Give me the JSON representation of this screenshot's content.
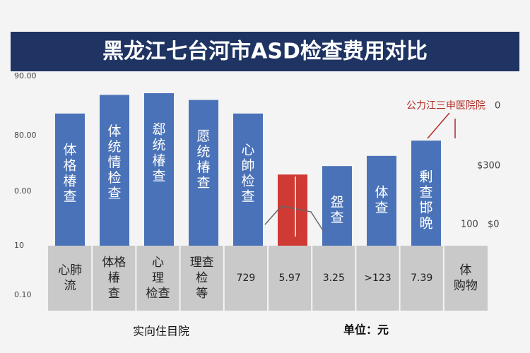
{
  "chart_data": {
    "type": "bar",
    "title": "黑龙江七台河市ASD检查费用对比",
    "bar_labels": [
      [
        "体",
        "格",
        "椿",
        "查"
      ],
      [
        "体",
        "统",
        "情",
        "检",
        "查"
      ],
      [
        "郄",
        "统",
        "椿",
        "查"
      ],
      [
        "愿",
        "统",
        "椿",
        "查"
      ],
      [
        "心",
        "帥",
        "检",
        "查"
      ],
      null,
      [
        "盌",
        "查"
      ],
      [
        "体",
        "查"
      ],
      [
        "剰",
        "查",
        "邯",
        "晩"
      ]
    ],
    "values": [
      78,
      89,
      90,
      86,
      78,
      42,
      47,
      53,
      62
    ],
    "colors": [
      "#4a72b8",
      "#4a72b8",
      "#4a72b8",
      "#4a72b8",
      "#4a72b8",
      "#cf3a34",
      "#4a72b8",
      "#4a72b8",
      "#4a72b8"
    ],
    "ylim": [
      0,
      100
    ],
    "left_labels": [
      "90.00",
      "80.00",
      "0.00",
      "10",
      "0.10"
    ],
    "right_labels": [
      "0",
      "$300",
      "100",
      "$0"
    ],
    "table_cells": [
      [
        "心肺",
        "流"
      ],
      [
        "体格",
        "椿",
        "查"
      ],
      [
        "心",
        "理",
        "检查"
      ],
      [
        "理查",
        "检",
        "等"
      ],
      [
        "729"
      ],
      [
        "5.97"
      ],
      [
        "3.25"
      ],
      [
        ">123"
      ],
      [
        "7.39"
      ],
      [
        "体",
        "购物"
      ]
    ],
    "annotation": "公力江三申医院院",
    "footer_left": "实向住目院",
    "footer_right": "单位：元"
  }
}
